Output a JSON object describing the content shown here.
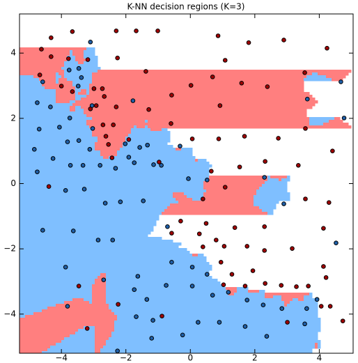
{
  "chart_data": {
    "type": "knn_scatter",
    "title": "K-NN decision regions (K=3)",
    "k": 3,
    "xlim": [
      -5.3,
      5.05
    ],
    "ylim": [
      -5.2,
      5.2
    ],
    "xticks": [
      {
        "value": -4,
        "label": "−4"
      },
      {
        "value": -2,
        "label": "−2"
      },
      0,
      2,
      4
    ],
    "yticks": [
      {
        "value": -4,
        "label": "−4"
      },
      {
        "value": -2,
        "label": "−2"
      },
      0,
      2,
      4
    ],
    "series": [
      {
        "color": "#a00000",
        "region_color": "#ff7f7f",
        "x": [
          -3.66,
          -4.32,
          -4.62,
          -2.3,
          -1.68,
          -1.01,
          0.86,
          1.81,
          2.9,
          4.24,
          -4.32,
          -3.78,
          -3.18,
          -2.26,
          -1.38,
          1.08,
          -4.67,
          -4.0,
          -3.66,
          -2.99,
          -2.73,
          -2.67,
          -2.92,
          -3.1,
          -2.3,
          -1.29,
          -0.58,
          0.02,
          0.69,
          1.59,
          2.39,
          3.55,
          0.92,
          3.57,
          -0.6,
          -2.71,
          -2.39,
          -2.62,
          -2.54,
          -2.43,
          -1.91,
          0.06,
          0.88,
          1.68,
          2.73,
          4.41,
          2.32,
          3.35,
          1.53,
          0.65,
          -0.97,
          -4.39,
          1.08,
          0.39,
          3.57,
          4.3,
          0.49,
          -0.3,
          -0.58,
          0.28,
          1.38,
          0.8,
          2.3,
          4.13,
          0.39,
          1.05,
          1.76,
          2.3,
          3.16,
          4.13,
          4.21,
          0.95,
          1.29,
          1.94,
          1.03,
          1.7,
          2.32,
          2.82,
          3.29,
          3.66,
          4.06,
          4.34,
          -2.24,
          -0.88,
          3.01,
          4.73,
          -3.46,
          -3.2
        ],
        "y": [
          4.66,
          4.47,
          4.12,
          4.68,
          4.68,
          4.68,
          4.53,
          4.32,
          4.4,
          4.15,
          3.89,
          3.83,
          3.8,
          3.85,
          3.44,
          3.78,
          3.33,
          2.99,
          2.82,
          2.91,
          2.91,
          2.67,
          2.39,
          2.29,
          2.35,
          2.27,
          2.71,
          3.01,
          3.27,
          3.08,
          2.97,
          3.4,
          2.39,
          1.69,
          1.84,
          1.8,
          1.8,
          1.45,
          1.2,
          0.79,
          1.35,
          1.37,
          1.37,
          1.45,
          1.39,
          1.0,
          0.68,
          0.56,
          0.51,
          0.38,
          0.66,
          -0.09,
          -0.11,
          -0.47,
          -0.47,
          -0.58,
          -1.22,
          -1.15,
          -1.52,
          -1.54,
          -1.35,
          -1.73,
          -1.32,
          -1.37,
          -1.94,
          -1.92,
          -1.92,
          -2.05,
          -1.99,
          -2.54,
          -2.88,
          -2.41,
          -2.78,
          -2.67,
          -3.1,
          -3.14,
          -3.06,
          -3.12,
          -3.16,
          -3.14,
          -3.76,
          -3.76,
          -3.7,
          -4.06,
          -4.25,
          -4.21,
          -3.14,
          -4.44
        ]
      },
      {
        "color": "#1f5fa8",
        "region_color": "#7fbfff",
        "x": [
          -3.1,
          -3.46,
          -3.76,
          -3.38,
          -3.48,
          -3.05,
          -4.75,
          -1.78,
          -4.69,
          -4.06,
          -3.03,
          -3.81,
          -3.46,
          -3.12,
          -2.02,
          -1.57,
          -1.33,
          -4.84,
          -4.26,
          -3.72,
          -3.33,
          -2.8,
          -2.32,
          -1.91,
          -1.74,
          -1.14,
          -0.9,
          -0.32,
          -0.06,
          0.52,
          2.3,
          2.9,
          -4.75,
          -3.29,
          -3.87,
          -2.64,
          -2.17,
          -1.46,
          -4.58,
          -3.63,
          -2.86,
          -2.41,
          -0.71,
          -3.87,
          -2.69,
          -1.63,
          -0.58,
          0.06,
          0.52,
          -0.75,
          0.06,
          0.69,
          1.18,
          -1.74,
          -1.35,
          1.76,
          2.26,
          2.84,
          3.61,
          -3.81,
          3.93,
          -1.68,
          -1.16,
          0.24,
          0.9,
          1.7,
          3.55,
          -1.2,
          -0.24,
          2.37,
          -2.26,
          4.67,
          4.77,
          3.63,
          4.52,
          -4.58,
          -4.34,
          -3.74
        ],
        "y": [
          4.34,
          3.53,
          3.48,
          3.25,
          2.99,
          2.39,
          2.48,
          2.54,
          1.67,
          1.73,
          1.69,
          1.28,
          1.32,
          1.05,
          1.22,
          1.11,
          1.18,
          1.05,
          0.77,
          0.56,
          0.56,
          0.56,
          0.47,
          0.81,
          0.64,
          0.58,
          0.56,
          1.15,
          0.15,
          0.11,
          0.19,
          -0.62,
          0.36,
          -0.17,
          -0.21,
          -0.6,
          -0.56,
          -0.53,
          -1.43,
          -1.45,
          -1.73,
          -1.73,
          -1.32,
          -2.56,
          -2.95,
          -2.84,
          -2.41,
          -2.56,
          -2.78,
          -3.12,
          -3.14,
          -3.42,
          -3.33,
          -3.25,
          -3.55,
          -3.57,
          -3.72,
          -3.83,
          -3.83,
          -3.76,
          -3.55,
          -4.08,
          -4.19,
          -4.25,
          -4.25,
          -4.38,
          -4.3,
          -4.74,
          -4.64,
          -4.68,
          -5.13,
          3.12,
          2.01,
          2.59,
          -1.82,
          3.12,
          2.35,
          2.01
        ]
      }
    ]
  }
}
